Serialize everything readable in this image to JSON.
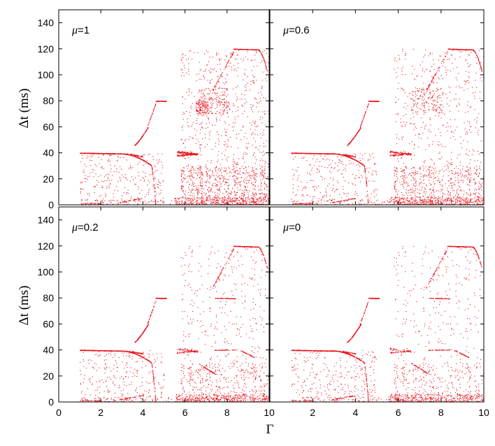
{
  "chart_data": {
    "type": "scatter",
    "layout": "2x2 panels with shared axes",
    "xlabel": "Γ",
    "ylabel": "Δt (ms)",
    "xlim": [
      0,
      10
    ],
    "ylim": [
      0,
      150
    ],
    "xticks": [
      "0",
      "2",
      "4",
      "6",
      "8",
      "10"
    ],
    "yticks": [
      "0",
      "20",
      "40",
      "60",
      "80",
      "100",
      "120",
      "140"
    ],
    "point_color": "#e8141c",
    "panels": [
      {
        "mu_symbol": "μ",
        "mu_value": "=1"
      },
      {
        "mu_symbol": "μ",
        "mu_value": "=0.6"
      },
      {
        "mu_symbol": "μ",
        "mu_value": "=0.2"
      },
      {
        "mu_symbol": "μ",
        "mu_value": "=0"
      }
    ]
  }
}
